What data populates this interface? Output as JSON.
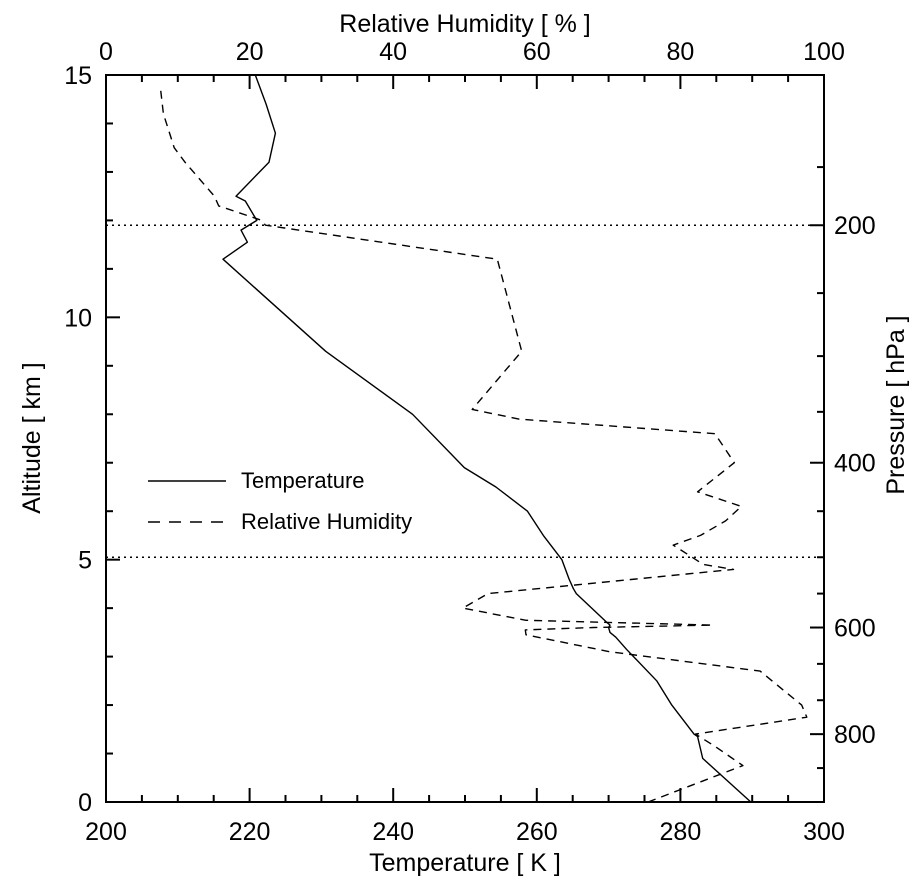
{
  "chart_data": {
    "type": "line",
    "xlabel_bottom": "Temperature [ K ]",
    "xlabel_top": "Relative Humidity [ % ]",
    "ylabel_left": "Altitude [ km ]",
    "ylabel_right": "Pressure [ hPa ]",
    "xlim_bottom": [
      200,
      300
    ],
    "xticks_bottom": [
      "200",
      "220",
      "240",
      "260",
      "280",
      "300"
    ],
    "xlim_top": [
      0,
      100
    ],
    "xticks_top": [
      "0",
      "20",
      "40",
      "60",
      "80",
      "100"
    ],
    "ylim": [
      0,
      15
    ],
    "yticks_left": [
      "0",
      "5",
      "10",
      "15"
    ],
    "yticks_right": [
      {
        "label": "200",
        "altitude": 11.9
      },
      {
        "label": "400",
        "altitude": 7.0
      },
      {
        "label": "600",
        "altitude": 3.6
      },
      {
        "label": "800",
        "altitude": 1.4
      }
    ],
    "reference_lines": [
      {
        "style": "dotted",
        "altitude": 11.9
      },
      {
        "style": "dotted",
        "altitude": 5.05
      }
    ],
    "legend": {
      "placement": "center-left",
      "entries": [
        {
          "label": "Temperature",
          "style": "solid"
        },
        {
          "label": "Relative Humidity",
          "style": "dashed"
        }
      ]
    },
    "series": [
      {
        "name": "Temperature",
        "axis": "bottom",
        "units": "K",
        "points": [
          [
            289.8,
            0.0
          ],
          [
            283.1,
            0.9
          ],
          [
            282.4,
            1.35
          ],
          [
            281.9,
            1.4
          ],
          [
            278.8,
            2.0
          ],
          [
            276.7,
            2.5
          ],
          [
            272.5,
            3.15
          ],
          [
            271.0,
            3.4
          ],
          [
            270.2,
            3.5
          ],
          [
            270.1,
            3.55
          ],
          [
            270.0,
            3.6
          ],
          [
            270.2,
            3.65
          ],
          [
            269.8,
            3.7
          ],
          [
            265.5,
            4.3
          ],
          [
            265.1,
            4.4
          ],
          [
            264.5,
            4.6
          ],
          [
            263.5,
            5.0
          ],
          [
            260.9,
            5.5
          ],
          [
            258.7,
            6.0
          ],
          [
            254.3,
            6.5
          ],
          [
            249.9,
            6.9
          ],
          [
            242.7,
            8.0
          ],
          [
            230.6,
            9.3
          ],
          [
            216.3,
            11.2
          ],
          [
            219.7,
            11.55
          ],
          [
            218.8,
            11.8
          ],
          [
            221.0,
            12.0
          ],
          [
            219.4,
            12.4
          ],
          [
            218.1,
            12.5
          ],
          [
            222.7,
            13.2
          ],
          [
            223.6,
            13.8
          ],
          [
            222.3,
            14.4
          ],
          [
            220.8,
            15.0
          ]
        ]
      },
      {
        "name": "Relative Humidity",
        "axis": "top",
        "units": "%",
        "points": [
          [
            75.5,
            0.0
          ],
          [
            88.7,
            0.75
          ],
          [
            84.8,
            1.15
          ],
          [
            82.1,
            1.4
          ],
          [
            97.6,
            1.75
          ],
          [
            96.9,
            2.0
          ],
          [
            91.1,
            2.7
          ],
          [
            70.2,
            3.1
          ],
          [
            58.5,
            3.45
          ],
          [
            58.4,
            3.55
          ],
          [
            67.9,
            3.6
          ],
          [
            84.5,
            3.65
          ],
          [
            58.5,
            3.75
          ],
          [
            49.7,
            4.0
          ],
          [
            53.2,
            4.3
          ],
          [
            87.4,
            4.8
          ],
          [
            83.2,
            4.9
          ],
          [
            79.0,
            5.3
          ],
          [
            82.8,
            5.5
          ],
          [
            86.3,
            5.8
          ],
          [
            88.5,
            6.1
          ],
          [
            82.4,
            6.4
          ],
          [
            87.5,
            7.0
          ],
          [
            84.8,
            7.6
          ],
          [
            57.5,
            7.9
          ],
          [
            51.0,
            8.1
          ],
          [
            57.9,
            9.3
          ],
          [
            54.5,
            11.2
          ],
          [
            22.2,
            11.9
          ],
          [
            21.7,
            12.0
          ],
          [
            15.7,
            12.3
          ],
          [
            15.1,
            12.5
          ],
          [
            11.0,
            13.2
          ],
          [
            9.5,
            13.5
          ],
          [
            8.0,
            14.2
          ],
          [
            7.6,
            14.7
          ]
        ]
      }
    ]
  }
}
